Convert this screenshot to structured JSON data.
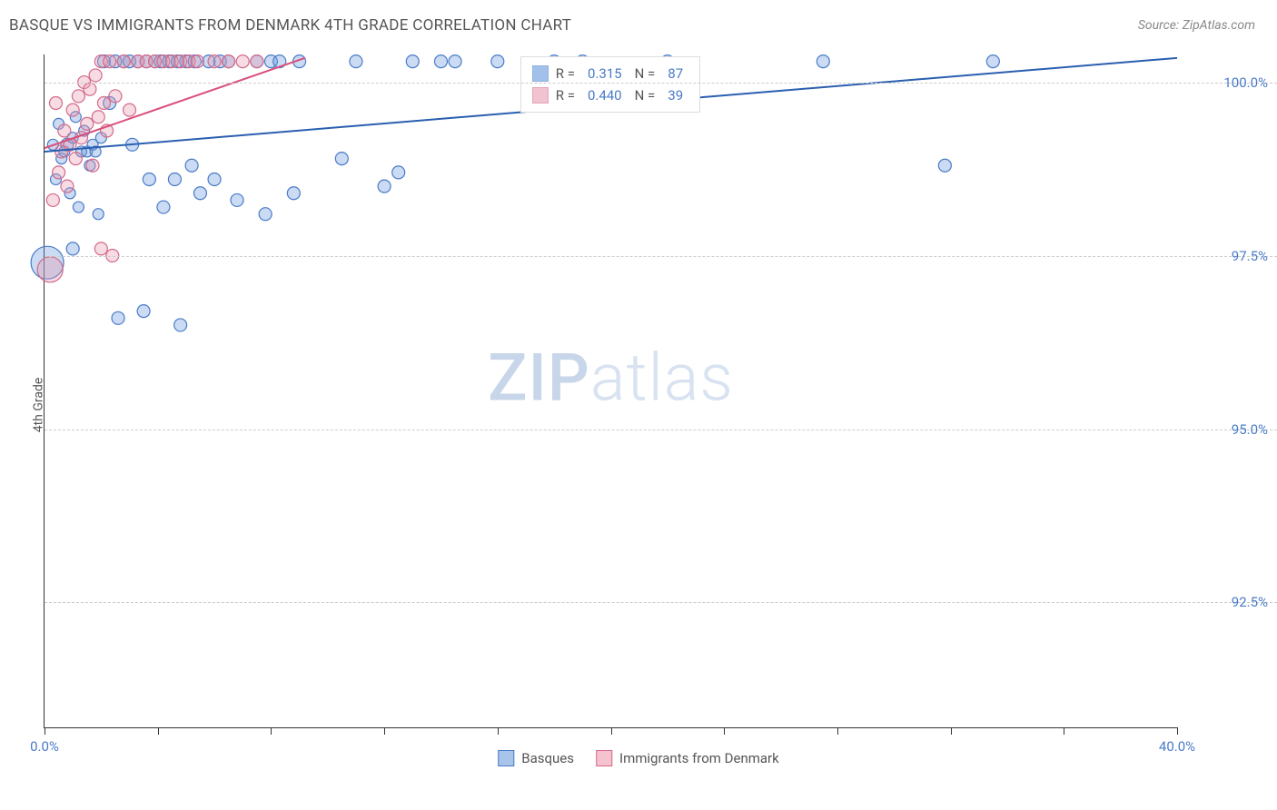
{
  "title": "BASQUE VS IMMIGRANTS FROM DENMARK 4TH GRADE CORRELATION CHART",
  "source_label": "Source: ZipAtlas.com",
  "y_axis_label": "4th Grade",
  "watermark_bold": "ZIP",
  "watermark_light": "atlas",
  "chart": {
    "type": "scatter",
    "x_domain": [
      0,
      40
    ],
    "y_domain": [
      90.7,
      100.4
    ],
    "x_ticks": [
      0,
      4,
      8,
      12,
      16,
      20,
      24,
      28,
      32,
      36,
      40
    ],
    "x_tick_labels": {
      "0": "0.0%",
      "40": "40.0%"
    },
    "y_ticks": [
      92.5,
      95.0,
      97.5,
      100.0
    ],
    "y_tick_labels": [
      "92.5%",
      "95.0%",
      "97.5%",
      "100.0%"
    ],
    "grid_color": "#cccccc",
    "background_color": "#ffffff",
    "series": [
      {
        "name": "Basques",
        "fill": "#6699dd",
        "fill_opacity": 0.35,
        "stroke": "#4a7bc8",
        "stroke_width": 1.2,
        "trend_line_color": "#2a5fb0",
        "trend_line_width": 2,
        "r_value": "0.315",
        "n_value": "87",
        "trend": {
          "x1": 0,
          "y1": 99.0,
          "x2": 40,
          "y2": 100.35
        },
        "points": [
          {
            "x": 0.1,
            "y": 97.4,
            "r": 18
          },
          {
            "x": 0.3,
            "y": 99.1,
            "r": 6
          },
          {
            "x": 0.4,
            "y": 98.6,
            "r": 6
          },
          {
            "x": 0.5,
            "y": 99.4,
            "r": 6
          },
          {
            "x": 0.6,
            "y": 98.9,
            "r": 6
          },
          {
            "x": 0.7,
            "y": 99.0,
            "r": 6
          },
          {
            "x": 0.8,
            "y": 99.1,
            "r": 7
          },
          {
            "x": 0.9,
            "y": 98.4,
            "r": 6
          },
          {
            "x": 1.0,
            "y": 99.2,
            "r": 6
          },
          {
            "x": 1.0,
            "y": 97.6,
            "r": 7
          },
          {
            "x": 1.1,
            "y": 99.5,
            "r": 6
          },
          {
            "x": 1.2,
            "y": 98.2,
            "r": 6
          },
          {
            "x": 1.3,
            "y": 99.0,
            "r": 6
          },
          {
            "x": 1.4,
            "y": 99.3,
            "r": 6
          },
          {
            "x": 1.5,
            "y": 99.0,
            "r": 6
          },
          {
            "x": 1.6,
            "y": 98.8,
            "r": 6
          },
          {
            "x": 1.7,
            "y": 99.1,
            "r": 6
          },
          {
            "x": 1.8,
            "y": 99.0,
            "r": 6
          },
          {
            "x": 1.9,
            "y": 98.1,
            "r": 6
          },
          {
            "x": 2.0,
            "y": 99.2,
            "r": 6
          },
          {
            "x": 2.1,
            "y": 100.3,
            "r": 7
          },
          {
            "x": 2.3,
            "y": 99.7,
            "r": 7
          },
          {
            "x": 2.5,
            "y": 100.3,
            "r": 7
          },
          {
            "x": 2.6,
            "y": 96.6,
            "r": 7
          },
          {
            "x": 2.8,
            "y": 100.3,
            "r": 7
          },
          {
            "x": 3.0,
            "y": 100.3,
            "r": 7
          },
          {
            "x": 3.1,
            "y": 99.1,
            "r": 7
          },
          {
            "x": 3.3,
            "y": 100.3,
            "r": 7
          },
          {
            "x": 3.5,
            "y": 96.7,
            "r": 7
          },
          {
            "x": 3.6,
            "y": 100.3,
            "r": 7
          },
          {
            "x": 3.7,
            "y": 98.6,
            "r": 7
          },
          {
            "x": 3.9,
            "y": 100.3,
            "r": 7
          },
          {
            "x": 4.1,
            "y": 100.3,
            "r": 7
          },
          {
            "x": 4.2,
            "y": 98.2,
            "r": 7
          },
          {
            "x": 4.4,
            "y": 100.3,
            "r": 7
          },
          {
            "x": 4.6,
            "y": 98.6,
            "r": 7
          },
          {
            "x": 4.7,
            "y": 100.3,
            "r": 7
          },
          {
            "x": 4.8,
            "y": 96.5,
            "r": 7
          },
          {
            "x": 5.0,
            "y": 100.3,
            "r": 7
          },
          {
            "x": 5.2,
            "y": 98.8,
            "r": 7
          },
          {
            "x": 5.3,
            "y": 100.3,
            "r": 7
          },
          {
            "x": 5.5,
            "y": 98.4,
            "r": 7
          },
          {
            "x": 5.8,
            "y": 100.3,
            "r": 7
          },
          {
            "x": 6.0,
            "y": 98.6,
            "r": 7
          },
          {
            "x": 6.2,
            "y": 100.3,
            "r": 7
          },
          {
            "x": 6.5,
            "y": 100.3,
            "r": 7
          },
          {
            "x": 6.8,
            "y": 98.3,
            "r": 7
          },
          {
            "x": 7.5,
            "y": 100.3,
            "r": 7
          },
          {
            "x": 7.8,
            "y": 98.1,
            "r": 7
          },
          {
            "x": 8.0,
            "y": 100.3,
            "r": 7
          },
          {
            "x": 8.3,
            "y": 100.3,
            "r": 7
          },
          {
            "x": 8.8,
            "y": 98.4,
            "r": 7
          },
          {
            "x": 9.0,
            "y": 100.3,
            "r": 7
          },
          {
            "x": 10.5,
            "y": 98.9,
            "r": 7
          },
          {
            "x": 11.0,
            "y": 100.3,
            "r": 7
          },
          {
            "x": 12.0,
            "y": 98.5,
            "r": 7
          },
          {
            "x": 12.5,
            "y": 98.7,
            "r": 7
          },
          {
            "x": 13.0,
            "y": 100.3,
            "r": 7
          },
          {
            "x": 14.0,
            "y": 100.3,
            "r": 7
          },
          {
            "x": 14.5,
            "y": 100.3,
            "r": 7
          },
          {
            "x": 16.0,
            "y": 100.3,
            "r": 7
          },
          {
            "x": 18.0,
            "y": 100.3,
            "r": 7
          },
          {
            "x": 19.0,
            "y": 100.3,
            "r": 7
          },
          {
            "x": 22.0,
            "y": 100.3,
            "r": 7
          },
          {
            "x": 27.5,
            "y": 100.3,
            "r": 7
          },
          {
            "x": 31.8,
            "y": 98.8,
            "r": 7
          },
          {
            "x": 33.5,
            "y": 100.3,
            "r": 7
          }
        ]
      },
      {
        "name": "Immigrants from Denmark",
        "fill": "#e89bb0",
        "fill_opacity": 0.35,
        "stroke": "#d46a8a",
        "stroke_width": 1.2,
        "trend_line_color": "#d94f7a",
        "trend_line_width": 2,
        "r_value": "0.440",
        "n_value": "39",
        "trend": {
          "x1": 0,
          "y1": 99.05,
          "x2": 9.2,
          "y2": 100.35
        },
        "points": [
          {
            "x": 0.2,
            "y": 97.3,
            "r": 14
          },
          {
            "x": 0.3,
            "y": 98.3,
            "r": 7
          },
          {
            "x": 0.4,
            "y": 99.7,
            "r": 7
          },
          {
            "x": 0.5,
            "y": 98.7,
            "r": 7
          },
          {
            "x": 0.6,
            "y": 99.0,
            "r": 7
          },
          {
            "x": 0.7,
            "y": 99.3,
            "r": 7
          },
          {
            "x": 0.8,
            "y": 98.5,
            "r": 7
          },
          {
            "x": 0.9,
            "y": 99.1,
            "r": 7
          },
          {
            "x": 1.0,
            "y": 99.6,
            "r": 7
          },
          {
            "x": 1.1,
            "y": 98.9,
            "r": 7
          },
          {
            "x": 1.2,
            "y": 99.8,
            "r": 7
          },
          {
            "x": 1.3,
            "y": 99.2,
            "r": 7
          },
          {
            "x": 1.4,
            "y": 100.0,
            "r": 7
          },
          {
            "x": 1.5,
            "y": 99.4,
            "r": 7
          },
          {
            "x": 1.6,
            "y": 99.9,
            "r": 7
          },
          {
            "x": 1.7,
            "y": 98.8,
            "r": 7
          },
          {
            "x": 1.8,
            "y": 100.1,
            "r": 7
          },
          {
            "x": 1.9,
            "y": 99.5,
            "r": 7
          },
          {
            "x": 2.0,
            "y": 100.3,
            "r": 7
          },
          {
            "x": 2.1,
            "y": 99.7,
            "r": 7
          },
          {
            "x": 2.2,
            "y": 99.3,
            "r": 7
          },
          {
            "x": 2.3,
            "y": 100.3,
            "r": 7
          },
          {
            "x": 2.5,
            "y": 99.8,
            "r": 7
          },
          {
            "x": 2.8,
            "y": 100.3,
            "r": 7
          },
          {
            "x": 3.0,
            "y": 99.6,
            "r": 7
          },
          {
            "x": 3.3,
            "y": 100.3,
            "r": 7
          },
          {
            "x": 3.6,
            "y": 100.3,
            "r": 7
          },
          {
            "x": 3.9,
            "y": 100.3,
            "r": 7
          },
          {
            "x": 4.2,
            "y": 100.3,
            "r": 7
          },
          {
            "x": 4.5,
            "y": 100.3,
            "r": 7
          },
          {
            "x": 4.8,
            "y": 100.3,
            "r": 7
          },
          {
            "x": 5.1,
            "y": 100.3,
            "r": 7
          },
          {
            "x": 5.4,
            "y": 100.3,
            "r": 7
          },
          {
            "x": 6.0,
            "y": 100.3,
            "r": 7
          },
          {
            "x": 6.5,
            "y": 100.3,
            "r": 7
          },
          {
            "x": 7.0,
            "y": 100.3,
            "r": 7
          },
          {
            "x": 7.5,
            "y": 100.3,
            "r": 7
          },
          {
            "x": 2.0,
            "y": 97.6,
            "r": 7
          },
          {
            "x": 2.4,
            "y": 97.5,
            "r": 7
          }
        ]
      }
    ],
    "bottom_legend": [
      {
        "label": "Basques",
        "fill": "#a8c4e8",
        "stroke": "#4a7bc8"
      },
      {
        "label": "Immigrants from Denmark",
        "fill": "#f5c2d0",
        "stroke": "#d46a8a"
      }
    ]
  }
}
